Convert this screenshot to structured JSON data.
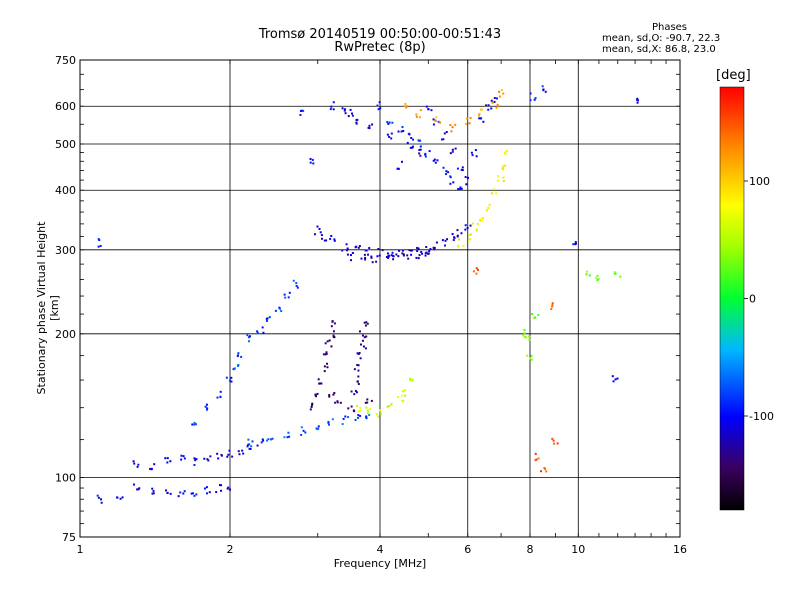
{
  "title_line1": "Tromsø 20140519 00:50:00-00:51:43",
  "title_line2": "RwPretec (8p)",
  "phase_box": {
    "header": "Phases",
    "line1": "mean, sd,O: -90.7, 22.3",
    "line2": "mean, sd,X:  86.8, 23.0"
  },
  "colorbar": {
    "unit": "[deg]",
    "min": -180,
    "max": 180,
    "ticks": [
      {
        "value": 100,
        "label": "100"
      },
      {
        "value": 0,
        "label": "0"
      },
      {
        "value": -100,
        "label": "-100"
      }
    ]
  },
  "chart_data": {
    "type": "scatter",
    "xlabel": "Frequency [MHz]",
    "ylabel": "Stationary phase Virtual Height [km]",
    "xscale": "log",
    "yscale": "log",
    "xlim": [
      1,
      16
    ],
    "ylim": [
      75,
      750
    ],
    "xticks": [
      {
        "value": 1,
        "label": "1"
      },
      {
        "value": 2,
        "label": "2"
      },
      {
        "value": 4,
        "label": "4"
      },
      {
        "value": 6,
        "label": "6"
      },
      {
        "value": 8,
        "label": "8"
      },
      {
        "value": 10,
        "label": "10"
      },
      {
        "value": 16,
        "label": "16"
      }
    ],
    "yticks": [
      {
        "value": 75,
        "label": "75"
      },
      {
        "value": 100,
        "label": "100"
      },
      {
        "value": 200,
        "label": "200"
      },
      {
        "value": 300,
        "label": "300"
      },
      {
        "value": 400,
        "label": "400"
      },
      {
        "value": 500,
        "label": "500"
      },
      {
        "value": 600,
        "label": "600"
      },
      {
        "value": 750,
        "label": "750"
      }
    ],
    "grid": true,
    "traces": [
      {
        "phase": -105,
        "points": [
          [
            1.0,
            92
          ],
          [
            1.1,
            90
          ],
          [
            1.2,
            91
          ],
          [
            1.3,
            95
          ],
          [
            1.4,
            94
          ],
          [
            1.5,
            93
          ],
          [
            1.6,
            92
          ],
          [
            1.7,
            93
          ],
          [
            1.8,
            94
          ],
          [
            1.9,
            95
          ],
          [
            2.0,
            96
          ]
        ]
      },
      {
        "phase": -110,
        "points": [
          [
            1.3,
            107
          ],
          [
            1.4,
            106
          ],
          [
            1.5,
            108
          ],
          [
            1.6,
            109
          ],
          [
            1.7,
            108
          ],
          [
            1.8,
            110
          ],
          [
            1.9,
            111
          ],
          [
            2.0,
            112
          ],
          [
            2.1,
            114
          ],
          [
            2.2,
            116
          ],
          [
            2.3,
            118
          ]
        ]
      },
      {
        "phase": -75,
        "points": [
          [
            2.2,
            118
          ],
          [
            2.4,
            120
          ],
          [
            2.6,
            122
          ],
          [
            2.8,
            125
          ],
          [
            3.0,
            128
          ],
          [
            3.2,
            130
          ],
          [
            3.4,
            132
          ],
          [
            3.6,
            134
          ],
          [
            3.8,
            135
          ]
        ]
      },
      {
        "phase": -85,
        "points": [
          [
            1.7,
            130
          ],
          [
            1.8,
            140
          ],
          [
            1.9,
            150
          ],
          [
            2.0,
            160
          ],
          [
            2.05,
            170
          ],
          [
            2.1,
            180
          ],
          [
            2.2,
            195
          ],
          [
            2.3,
            205
          ],
          [
            2.4,
            215
          ],
          [
            2.5,
            225
          ],
          [
            2.6,
            240
          ],
          [
            2.7,
            255
          ]
        ]
      },
      {
        "phase": -140,
        "points": [
          [
            2.9,
            140
          ],
          [
            3.0,
            150
          ],
          [
            3.05,
            160
          ],
          [
            3.1,
            170
          ],
          [
            3.1,
            180
          ],
          [
            3.15,
            190
          ],
          [
            3.2,
            200
          ],
          [
            3.25,
            210
          ],
          [
            3.2,
            150
          ],
          [
            3.3,
            145
          ]
        ]
      },
      {
        "phase": -135,
        "points": [
          [
            3.5,
            140
          ],
          [
            3.55,
            150
          ],
          [
            3.6,
            160
          ],
          [
            3.6,
            170
          ],
          [
            3.65,
            180
          ],
          [
            3.7,
            190
          ],
          [
            3.7,
            200
          ],
          [
            3.75,
            210
          ],
          [
            3.8,
            145
          ]
        ]
      },
      {
        "phase": 60,
        "points": [
          [
            3.6,
            140
          ],
          [
            3.8,
            138
          ],
          [
            4.0,
            136
          ],
          [
            4.2,
            140
          ],
          [
            4.4,
            145
          ],
          [
            4.5,
            150
          ],
          [
            4.6,
            158
          ]
        ]
      },
      {
        "phase": -115,
        "points": [
          [
            3.0,
            330
          ],
          [
            3.1,
            320
          ],
          [
            3.2,
            315
          ],
          [
            3.4,
            305
          ],
          [
            3.6,
            300
          ],
          [
            3.8,
            298
          ],
          [
            4.0,
            296
          ],
          [
            4.2,
            295
          ],
          [
            4.4,
            294
          ],
          [
            4.6,
            296
          ],
          [
            4.8,
            298
          ],
          [
            5.0,
            300
          ],
          [
            5.2,
            305
          ],
          [
            5.4,
            310
          ],
          [
            5.6,
            318
          ],
          [
            5.8,
            325
          ],
          [
            6.0,
            335
          ]
        ]
      },
      {
        "phase": -120,
        "points": [
          [
            3.5,
            290
          ],
          [
            3.7,
            288
          ],
          [
            3.9,
            287
          ],
          [
            4.1,
            288
          ],
          [
            4.3,
            289
          ],
          [
            4.5,
            291
          ],
          [
            4.8,
            294
          ],
          [
            5.0,
            297
          ]
        ]
      },
      {
        "phase": 80,
        "points": [
          [
            5.8,
            310
          ],
          [
            6.0,
            320
          ],
          [
            6.2,
            335
          ],
          [
            6.4,
            350
          ],
          [
            6.6,
            370
          ],
          [
            6.8,
            395
          ],
          [
            7.0,
            420
          ],
          [
            7.1,
            450
          ],
          [
            7.2,
            480
          ]
        ]
      },
      {
        "phase": -110,
        "points": [
          [
            3.2,
            600
          ],
          [
            3.4,
            590
          ],
          [
            3.5,
            580
          ],
          [
            3.6,
            560
          ],
          [
            3.8,
            540
          ],
          [
            4.0,
            600
          ],
          [
            4.2,
            520
          ],
          [
            4.4,
            450
          ],
          [
            4.6,
            500
          ],
          [
            4.8,
            480
          ],
          [
            5.0,
            600
          ],
          [
            5.2,
            560
          ],
          [
            5.4,
            520
          ],
          [
            5.6,
            480
          ],
          [
            5.8,
            440
          ],
          [
            6.0,
            420
          ],
          [
            6.2,
            480
          ],
          [
            6.4,
            560
          ],
          [
            6.6,
            600
          ],
          [
            6.8,
            620
          ]
        ]
      },
      {
        "phase": 120,
        "points": [
          [
            4.5,
            600
          ],
          [
            4.8,
            580
          ],
          [
            5.2,
            560
          ],
          [
            5.6,
            540
          ],
          [
            6.0,
            560
          ],
          [
            6.4,
            580
          ],
          [
            6.8,
            600
          ],
          [
            7.0,
            640
          ]
        ]
      },
      {
        "phase": -95,
        "points": [
          [
            4.2,
            560
          ],
          [
            4.4,
            540
          ],
          [
            4.6,
            520
          ],
          [
            4.8,
            500
          ],
          [
            5.0,
            480
          ],
          [
            5.2,
            460
          ],
          [
            5.4,
            440
          ],
          [
            5.6,
            420
          ],
          [
            5.8,
            410
          ]
        ]
      },
      {
        "phase": 30,
        "points": [
          [
            7.8,
            200
          ],
          [
            7.9,
            195
          ],
          [
            8.0,
            180
          ],
          [
            8.2,
            220
          ],
          [
            10.5,
            270
          ],
          [
            11.0,
            260
          ],
          [
            12.0,
            265
          ]
        ]
      },
      {
        "phase": 150,
        "points": [
          [
            8.3,
            110
          ],
          [
            8.5,
            105
          ],
          [
            9.0,
            120
          ],
          [
            6.2,
            270
          ],
          [
            8.8,
            230
          ]
        ]
      },
      {
        "phase": -100,
        "points": [
          [
            1.1,
            310
          ],
          [
            2.8,
            580
          ],
          [
            2.9,
            460
          ],
          [
            9.8,
            310
          ],
          [
            11.9,
            160
          ],
          [
            13.0,
            610
          ],
          [
            8.6,
            650
          ],
          [
            8.1,
            630
          ]
        ]
      }
    ]
  }
}
